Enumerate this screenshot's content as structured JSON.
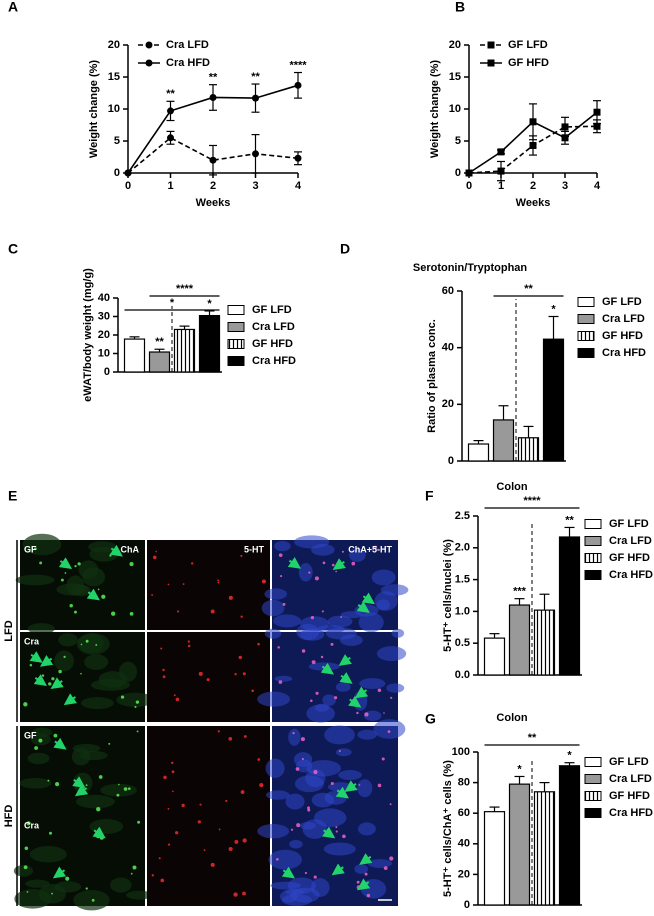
{
  "chart_data": [
    {
      "type": "line",
      "panel": "A",
      "ylabel": "Weight change (%)",
      "xlabel": "Weeks",
      "x": [
        0,
        1,
        2,
        3,
        4
      ],
      "xlim": [
        0,
        4
      ],
      "xticks": [
        0,
        1,
        2,
        3,
        4
      ],
      "ylim": [
        0,
        20
      ],
      "yticks": [
        0,
        5,
        10,
        15,
        20
      ],
      "series": [
        {
          "name": "Cra LFD",
          "color": "#000000",
          "marker": "circle",
          "dashed": true,
          "values": [
            0,
            5.5,
            2,
            3,
            2.3
          ],
          "errors": [
            0,
            1,
            2.3,
            3,
            1
          ]
        },
        {
          "name": "Cra HFD",
          "color": "#000000",
          "marker": "circle",
          "dashed": false,
          "values": [
            0,
            9.7,
            11.8,
            11.7,
            13.7
          ],
          "errors": [
            0,
            1.5,
            2,
            2.2,
            2
          ]
        }
      ],
      "annotations": [
        {
          "text": "**",
          "x": 1
        },
        {
          "text": "**",
          "x": 2
        },
        {
          "text": "**",
          "x": 3
        },
        {
          "text": "****",
          "x": 4
        }
      ]
    },
    {
      "type": "line",
      "panel": "B",
      "ylabel": "Weight change (%)",
      "xlabel": "Weeks",
      "x": [
        0,
        1,
        2,
        3,
        4
      ],
      "xlim": [
        0,
        4
      ],
      "xticks": [
        0,
        1,
        2,
        3,
        4
      ],
      "ylim": [
        0,
        20
      ],
      "yticks": [
        0,
        5,
        10,
        15,
        20
      ],
      "series": [
        {
          "name": "GF LFD",
          "color": "#000000",
          "marker": "square",
          "dashed": true,
          "values": [
            0,
            0.3,
            4.3,
            7.2,
            7.3
          ],
          "errors": [
            0,
            1.5,
            1.5,
            1.5,
            1
          ]
        },
        {
          "name": "GF HFD",
          "color": "#000000",
          "marker": "square",
          "dashed": false,
          "values": [
            0,
            3.3,
            8,
            5.5,
            9.5
          ],
          "errors": [
            0,
            0.3,
            2.8,
            1,
            1.8
          ]
        }
      ],
      "annotations": []
    },
    {
      "type": "bar",
      "panel": "C",
      "ylabel": "eWAT/body weight (mg/g)",
      "categories": [
        "GF LFD",
        "Cra LFD",
        "GF HFD",
        "Cra HFD"
      ],
      "fills": [
        "#ffffff",
        "#999999",
        "vertical-stripes",
        "#000000"
      ],
      "values": [
        17.8,
        10.8,
        23,
        30.5
      ],
      "errors": [
        1.2,
        1.5,
        1.8,
        2.5
      ],
      "ylim": [
        0,
        40
      ],
      "yticks": [
        0,
        10,
        20,
        30,
        40
      ],
      "annotations": [
        {
          "text": "**",
          "at": "Cra LFD"
        },
        {
          "text": "*",
          "at": "Cra HFD"
        }
      ],
      "brackets": [
        {
          "text": "****",
          "from": "Cra LFD",
          "to": "Cra HFD"
        },
        {
          "text": "*",
          "from": "GF LFD",
          "to": "Cra HFD"
        }
      ]
    },
    {
      "type": "bar",
      "panel": "D",
      "title": "Serotonin/Tryptophan",
      "ylabel": "Ratio of plasma conc.",
      "categories": [
        "GF LFD",
        "Cra LFD",
        "GF HFD",
        "Cra HFD"
      ],
      "fills": [
        "#ffffff",
        "#999999",
        "vertical-stripes",
        "#000000"
      ],
      "values": [
        6,
        14.5,
        8.2,
        43
      ],
      "errors": [
        1.2,
        5,
        4,
        8
      ],
      "ylim": [
        0,
        60
      ],
      "yticks": [
        0,
        20,
        40,
        60
      ],
      "annotations": [
        {
          "text": "*",
          "at": "Cra HFD"
        }
      ],
      "brackets": [
        {
          "text": "**",
          "from": "Cra LFD",
          "to": "Cra HFD"
        }
      ]
    },
    {
      "type": "bar",
      "panel": "F",
      "title": "Colon",
      "ylabel": "5-HT⁺ cells/nuclei (%)",
      "categories": [
        "GF LFD",
        "Cra LFD",
        "GF HFD",
        "Cra HFD"
      ],
      "fills": [
        "#ffffff",
        "#999999",
        "vertical-stripes",
        "#000000"
      ],
      "values": [
        0.58,
        1.1,
        1.02,
        2.17
      ],
      "errors": [
        0.07,
        0.1,
        0.25,
        0.15
      ],
      "ylim": [
        0,
        2.5
      ],
      "yticks": [
        {
          "value": 0,
          "label": "0.0"
        },
        0.5,
        {
          "value": 1,
          "label": "1.0"
        },
        1.5,
        {
          "value": 2,
          "label": "2.0"
        },
        2.5
      ],
      "annotations": [
        {
          "text": "***",
          "at": "Cra LFD"
        },
        {
          "text": "**",
          "at": "Cra HFD"
        }
      ],
      "brackets": [
        {
          "text": "****",
          "from": "GF LFD",
          "to": "Cra HFD"
        }
      ]
    },
    {
      "type": "bar",
      "panel": "G",
      "title": "Colon",
      "ylabel": "5-HT⁺ cells/ChA⁺ cells (%)",
      "categories": [
        "GF LFD",
        "Cra LFD",
        "GF HFD",
        "Cra HFD"
      ],
      "fills": [
        "#ffffff",
        "#999999",
        "vertical-stripes",
        "#000000"
      ],
      "values": [
        61,
        79,
        74,
        91
      ],
      "errors": [
        3,
        5,
        6,
        2
      ],
      "ylim": [
        0,
        100
      ],
      "yticks": [
        0,
        20,
        40,
        60,
        80,
        100
      ],
      "annotations": [
        {
          "text": "*",
          "at": "Cra LFD"
        },
        {
          "text": "*",
          "at": "Cra HFD"
        }
      ],
      "brackets": [
        {
          "text": "**",
          "from": "GF LFD",
          "to": "Cra HFD"
        }
      ]
    }
  ],
  "image_panel": {
    "panel": "E",
    "columns": [
      "ChA",
      "5-HT",
      "ChA+5-HT"
    ],
    "groups": [
      {
        "label": "LFD",
        "rows": [
          "GF",
          "Cra"
        ]
      },
      {
        "label": "HFD",
        "rows": [
          "GF",
          "Cra"
        ]
      }
    ]
  }
}
